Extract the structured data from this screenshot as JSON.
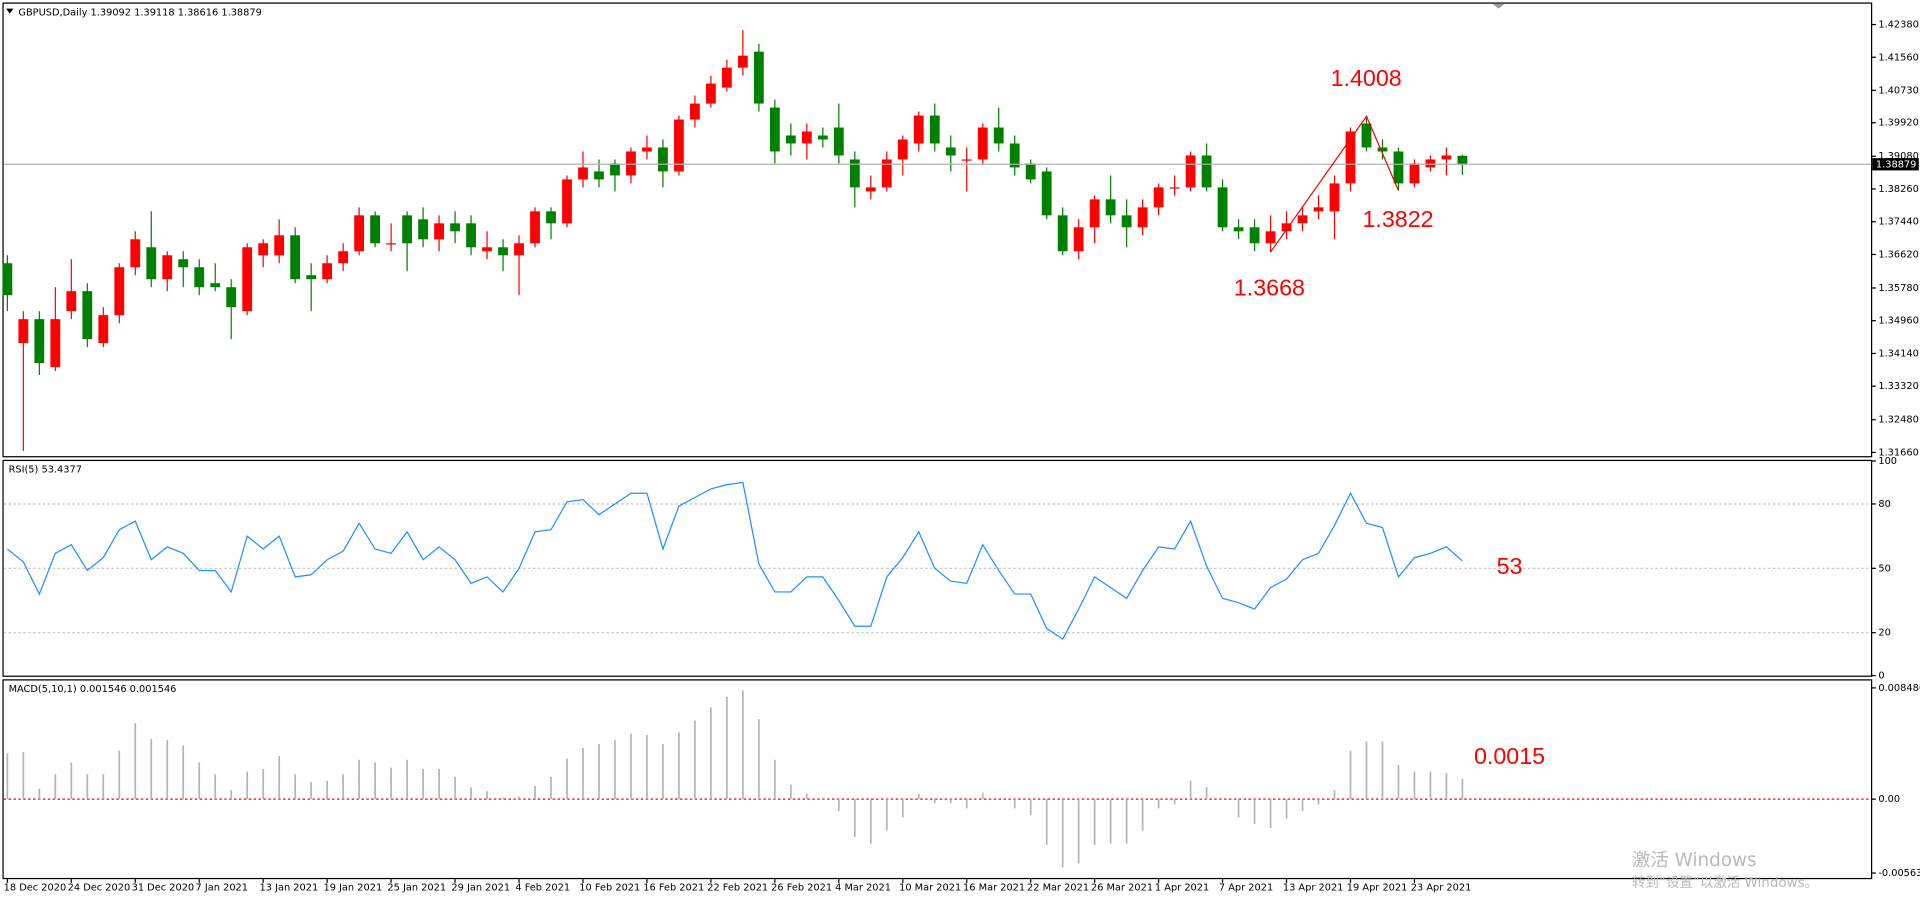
{
  "chart_data": [
    {
      "type": "candlestick",
      "title": "GBPUSD,Daily  1.39092 1.39118 1.38616 1.38879",
      "categories": [
        "18 Dec 2020",
        null,
        null,
        null,
        "24 Dec 2020",
        null,
        null,
        null,
        "31 Dec 2020",
        null,
        null,
        null,
        "7 Jan 2021",
        null,
        null,
        null,
        "13 Jan 2021",
        null,
        null,
        null,
        "19 Jan 2021",
        null,
        null,
        null,
        "25 Jan 2021",
        null,
        null,
        null,
        "29 Jan 2021",
        null,
        null,
        null,
        "4 Feb 2021",
        null,
        null,
        null,
        "10 Feb 2021",
        null,
        null,
        null,
        "16 Feb 2021",
        null,
        null,
        null,
        "22 Feb 2021",
        null,
        null,
        null,
        "26 Feb 2021",
        null,
        null,
        null,
        "4 Mar 2021",
        null,
        null,
        null,
        "10 Mar 2021",
        null,
        null,
        null,
        "16 Mar 2021",
        null,
        null,
        null,
        "22 Mar 2021",
        null,
        null,
        null,
        "26 Mar 2021",
        null,
        null,
        null,
        "1 Apr 2021",
        null,
        null,
        null,
        "7 Apr 2021",
        null,
        null,
        null,
        "13 Apr 2021",
        null,
        null,
        null,
        "19 Apr 2021",
        null,
        null,
        null,
        "23 Apr 2021",
        null,
        null,
        null
      ],
      "open": [
        1.364,
        1.344,
        1.35,
        1.338,
        1.352,
        1.357,
        1.344,
        1.351,
        1.363,
        1.368,
        1.36,
        1.365,
        1.363,
        1.359,
        1.358,
        1.352,
        1.366,
        1.366,
        1.371,
        1.361,
        1.36,
        1.364,
        1.367,
        1.376,
        1.369,
        1.376,
        1.375,
        1.37,
        1.374,
        1.374,
        1.367,
        1.368,
        1.366,
        1.369,
        1.377,
        1.374,
        1.385,
        1.387,
        1.389,
        1.386,
        1.392,
        1.393,
        1.387,
        1.4,
        1.404,
        1.408,
        1.413,
        1.417,
        1.403,
        1.396,
        1.394,
        1.396,
        1.398,
        1.39,
        1.382,
        1.383,
        1.39,
        1.394,
        1.401,
        1.393,
        1.39,
        1.39,
        1.398,
        1.394,
        1.389,
        1.387,
        1.376,
        1.367,
        1.373,
        1.38,
        1.376,
        1.373,
        1.378,
        1.383,
        1.383,
        1.391,
        1.383,
        1.373,
        1.373,
        1.369,
        1.372,
        1.374,
        1.377,
        1.377,
        1.384,
        1.399,
        1.393,
        1.392,
        1.384,
        1.388,
        1.39,
        1.39092
      ],
      "high": [
        1.366,
        1.352,
        1.352,
        1.358,
        1.365,
        1.359,
        1.353,
        1.364,
        1.372,
        1.377,
        1.367,
        1.367,
        1.365,
        1.364,
        1.36,
        1.369,
        1.37,
        1.375,
        1.373,
        1.364,
        1.366,
        1.369,
        1.378,
        1.377,
        1.374,
        1.377,
        1.378,
        1.376,
        1.377,
        1.376,
        1.372,
        1.37,
        1.371,
        1.378,
        1.378,
        1.386,
        1.392,
        1.39,
        1.39,
        1.393,
        1.396,
        1.395,
        1.401,
        1.406,
        1.411,
        1.415,
        1.4224,
        1.419,
        1.405,
        1.399,
        1.399,
        1.398,
        1.404,
        1.392,
        1.386,
        1.392,
        1.396,
        1.402,
        1.404,
        1.396,
        1.393,
        1.399,
        1.403,
        1.396,
        1.39,
        1.388,
        1.378,
        1.375,
        1.381,
        1.386,
        1.38,
        1.38,
        1.384,
        1.386,
        1.392,
        1.394,
        1.385,
        1.375,
        1.375,
        1.376,
        1.377,
        1.378,
        1.381,
        1.386,
        1.398,
        1.4008,
        1.395,
        1.393,
        1.39,
        1.391,
        1.393,
        1.39118
      ],
      "low": [
        1.352,
        1.317,
        1.336,
        1.337,
        1.35,
        1.343,
        1.343,
        1.349,
        1.361,
        1.358,
        1.357,
        1.358,
        1.356,
        1.357,
        1.345,
        1.351,
        1.363,
        1.364,
        1.359,
        1.352,
        1.359,
        1.362,
        1.366,
        1.368,
        1.367,
        1.362,
        1.368,
        1.367,
        1.369,
        1.366,
        1.365,
        1.362,
        1.356,
        1.368,
        1.37,
        1.373,
        1.383,
        1.383,
        1.382,
        1.384,
        1.39,
        1.383,
        1.386,
        1.398,
        1.403,
        1.407,
        1.411,
        1.402,
        1.389,
        1.391,
        1.39,
        1.393,
        1.389,
        1.378,
        1.38,
        1.382,
        1.386,
        1.392,
        1.392,
        1.387,
        1.382,
        1.389,
        1.392,
        1.386,
        1.384,
        1.375,
        1.366,
        1.365,
        1.369,
        1.374,
        1.368,
        1.371,
        1.376,
        1.381,
        1.382,
        1.382,
        1.372,
        1.37,
        1.367,
        1.3668,
        1.37,
        1.372,
        1.375,
        1.37,
        1.382,
        1.392,
        1.39,
        1.3822,
        1.383,
        1.387,
        1.386,
        1.38616
      ],
      "close": [
        1.356,
        1.35,
        1.339,
        1.35,
        1.357,
        1.345,
        1.351,
        1.363,
        1.37,
        1.36,
        1.366,
        1.363,
        1.358,
        1.358,
        1.353,
        1.368,
        1.369,
        1.371,
        1.36,
        1.36,
        1.364,
        1.367,
        1.376,
        1.369,
        1.369,
        1.369,
        1.37,
        1.374,
        1.372,
        1.368,
        1.368,
        1.366,
        1.369,
        1.377,
        1.374,
        1.385,
        1.388,
        1.385,
        1.386,
        1.392,
        1.393,
        1.387,
        1.4,
        1.404,
        1.409,
        1.413,
        1.416,
        1.404,
        1.392,
        1.394,
        1.397,
        1.395,
        1.391,
        1.383,
        1.383,
        1.39,
        1.395,
        1.401,
        1.394,
        1.391,
        1.39,
        1.398,
        1.394,
        1.388,
        1.385,
        1.376,
        1.367,
        1.373,
        1.38,
        1.376,
        1.373,
        1.378,
        1.383,
        1.383,
        1.391,
        1.383,
        1.373,
        1.372,
        1.369,
        1.372,
        1.374,
        1.376,
        1.378,
        1.384,
        1.397,
        1.393,
        1.392,
        1.384,
        1.389,
        1.39,
        1.391,
        1.38879
      ],
      "up_color": "#ff0000",
      "down_color": "#008000",
      "ylim": [
        1.3166,
        1.4238
      ],
      "yticks": [
        {
          "value": 1.4238,
          "label": "1.42380"
        },
        {
          "value": 1.4156,
          "label": "1.41560"
        },
        {
          "value": 1.4073,
          "label": "1.40730"
        },
        {
          "value": 1.3992,
          "label": "1.39920"
        },
        {
          "value": 1.3908,
          "label": "1.39080"
        },
        {
          "value": 1.3826,
          "label": "1.38260"
        },
        {
          "value": 1.3744,
          "label": "1.37440"
        },
        {
          "value": 1.3662,
          "label": "1.36620"
        },
        {
          "value": 1.3578,
          "label": "1.35780"
        },
        {
          "value": 1.3496,
          "label": "1.34960"
        },
        {
          "value": 1.3414,
          "label": "1.34140"
        },
        {
          "value": 1.3332,
          "label": "1.33320"
        },
        {
          "value": 1.3248,
          "label": "1.32480"
        },
        {
          "value": 1.3166,
          "label": "1.31660"
        }
      ],
      "grid": false,
      "price_label": "1.38879",
      "annotations": [
        "1.4008",
        "1.3822",
        "1.3668"
      ],
      "annotation_color": "#ff0000"
    },
    {
      "type": "line",
      "title": "RSI(5) 53.4377",
      "values": [
        59,
        53,
        38,
        57,
        61,
        49,
        55,
        68,
        72,
        54,
        60,
        57,
        49,
        49,
        39,
        65,
        59,
        65,
        46,
        47,
        54,
        58,
        71,
        59,
        57,
        67,
        54,
        60,
        54,
        43,
        46,
        39,
        50,
        67,
        68,
        81,
        82,
        75,
        80,
        85,
        85,
        59,
        79,
        83,
        87,
        89,
        90,
        52,
        39,
        39,
        46,
        46,
        35,
        23,
        23,
        46,
        55,
        67,
        50,
        44,
        43,
        61,
        49,
        38,
        38,
        22,
        17,
        31,
        46,
        41,
        36,
        49,
        60,
        59,
        72,
        51,
        36,
        34,
        31,
        41,
        45,
        54,
        57,
        70,
        85,
        71,
        69,
        46,
        55,
        57,
        60,
        53.4377
      ],
      "color": "#1e90ff",
      "ylim": [
        0,
        100
      ],
      "yticks": [
        0,
        20,
        50,
        80,
        100
      ],
      "grid": true,
      "grid_color": "#c0c0c0",
      "annotations": [
        "53"
      ],
      "annotation_color": "#ff0000"
    },
    {
      "type": "bar",
      "title": "MACD(5,10,1) 0.001546 0.001546",
      "values": [
        0.0035,
        0.0036,
        0.0008,
        0.0019,
        0.0028,
        0.0019,
        0.0019,
        0.0037,
        0.0058,
        0.0046,
        0.0045,
        0.0041,
        0.0028,
        0.0019,
        0.0007,
        0.0021,
        0.0023,
        0.0033,
        0.0019,
        0.0013,
        0.0014,
        0.0019,
        0.003,
        0.0028,
        0.0024,
        0.003,
        0.0023,
        0.0023,
        0.0017,
        0.0009,
        0.0006,
        0.0001,
        0.0002,
        0.001,
        0.0017,
        0.0031,
        0.0039,
        0.0042,
        0.0045,
        0.005,
        0.0049,
        0.0042,
        0.0051,
        0.006,
        0.007,
        0.0078,
        0.0083,
        0.0061,
        0.003,
        0.0011,
        0.0004,
        0.0001,
        -0.0009,
        -0.0029,
        -0.0034,
        -0.0024,
        -0.0014,
        0.0004,
        -0.0003,
        -0.0003,
        -0.0007,
        0.0005,
        0.0,
        -0.0007,
        -0.0012,
        -0.0035,
        -0.0052,
        -0.0049,
        -0.0035,
        -0.0034,
        -0.0034,
        -0.0024,
        -0.0007,
        -0.0004,
        0.0014,
        0.0009,
        0.0,
        -0.0014,
        -0.0019,
        -0.0022,
        -0.0015,
        -0.0009,
        -0.0004,
        0.0007,
        0.0037,
        0.0044,
        0.0044,
        0.0026,
        0.0021,
        0.0021,
        0.002,
        0.001546
      ],
      "color": "#b4b4b4",
      "ylim": [
        -0.005636,
        0.008486
      ],
      "yticks": [
        -0.005636,
        {
          "value": 0,
          "label": "0.00"
        },
        0.008486
      ],
      "grid": true,
      "grid_color": "#ff0000",
      "annotations": [
        "0.0015"
      ],
      "annotation_color": "#ff0000"
    }
  ],
  "watermark": [
    "激活 Windows",
    "转到“设置”以激活 Windows。"
  ]
}
